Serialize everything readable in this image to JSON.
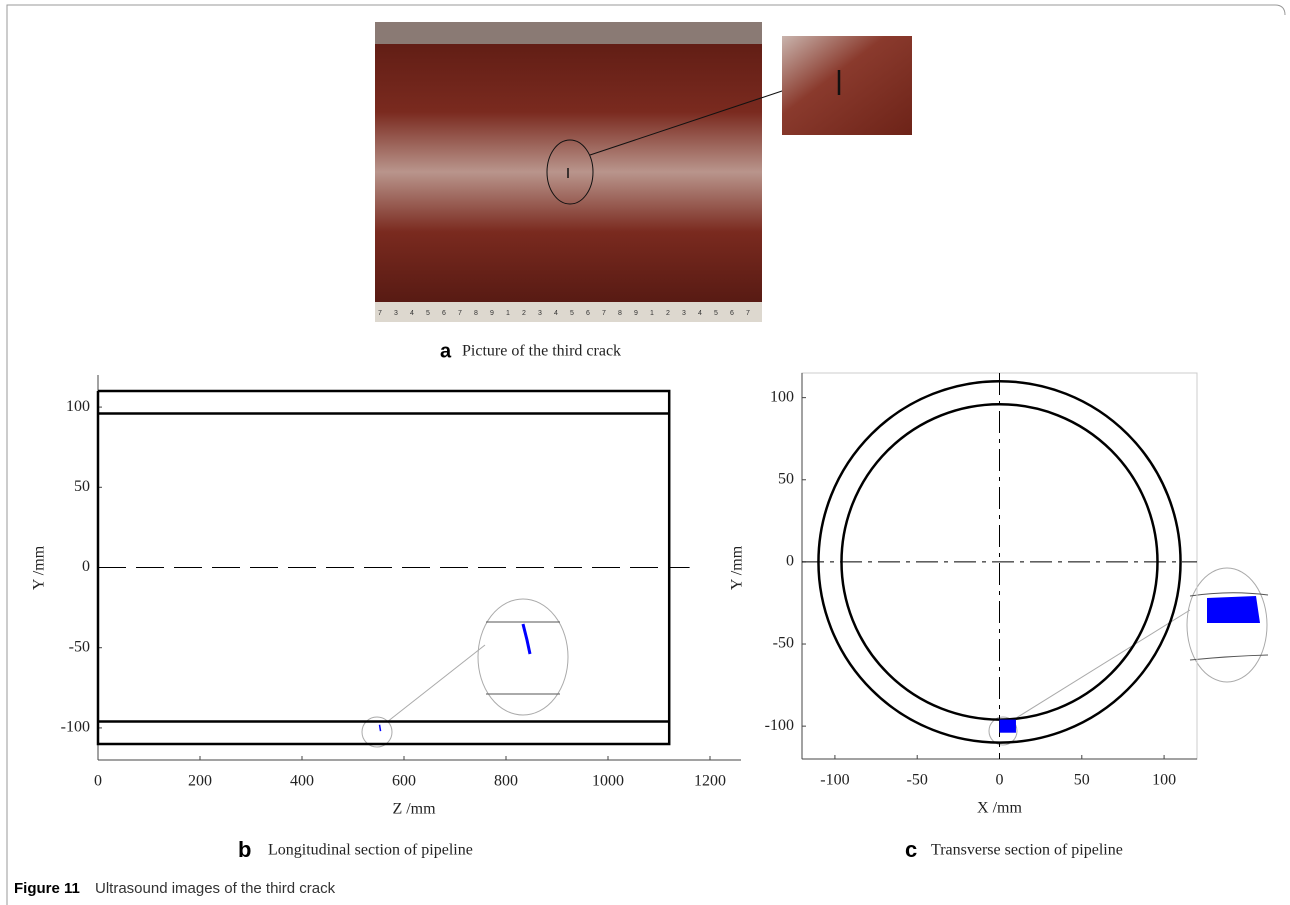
{
  "figure": {
    "label": "Figure 11",
    "caption": "Ultrasound images of the third crack"
  },
  "panel_a": {
    "letter": "a",
    "caption": "Picture of the third crack",
    "ruler_labels": [
      "7",
      "3",
      "4",
      "5",
      "6",
      "7",
      "8",
      "9",
      "1",
      "2",
      "3",
      "4",
      "5",
      "6",
      "7",
      "8",
      "9",
      "1",
      "2",
      "3",
      "4",
      "5",
      "6",
      "7"
    ]
  },
  "chart_data": [
    {
      "type": "line",
      "letter": "b",
      "caption": "Longitudinal section of pipeline",
      "x_label": "Z /mm",
      "y_label": "Y /mm",
      "xlim": [
        0,
        1200
      ],
      "xticks": [
        0,
        200,
        400,
        600,
        800,
        1000,
        1200
      ],
      "ylim": [
        -120,
        120
      ],
      "yticks": [
        -100,
        -50,
        0,
        50,
        100
      ],
      "series": [
        {
          "color": "#000000",
          "width": 2.5,
          "x": [
            0,
            1120,
            1120,
            0,
            0
          ],
          "values": [
            110,
            110,
            -110,
            -110,
            110
          ]
        },
        {
          "color": "#000000",
          "width": 2.5,
          "x": [
            0,
            1120
          ],
          "values": [
            96,
            96
          ]
        },
        {
          "color": "#000000",
          "width": 2.5,
          "x": [
            0,
            1120
          ],
          "values": [
            -96,
            -96
          ]
        },
        {
          "color": "#000000",
          "width": 1,
          "dash": true,
          "x": [
            0,
            1160
          ],
          "values": [
            0,
            0
          ]
        },
        {
          "color": "#0000ff",
          "width": 1.5,
          "x": [
            552,
            554
          ],
          "values": [
            -98,
            -102
          ]
        }
      ]
    },
    {
      "type": "section",
      "letter": "c",
      "caption": "Transverse section of pipeline",
      "x_label": "X /mm",
      "y_label": "Y /mm",
      "xlim": [
        -120,
        120
      ],
      "xticks": [
        -100,
        -50,
        0,
        50,
        100
      ],
      "ylim": [
        -120,
        115
      ],
      "yticks": [
        -100,
        -50,
        0,
        50,
        100
      ],
      "radii": [
        110,
        96
      ],
      "color": "#000000",
      "defect": {
        "x": [
          0,
          10
        ],
        "y": [
          -104,
          -96
        ],
        "color": "#0000ff"
      }
    }
  ]
}
